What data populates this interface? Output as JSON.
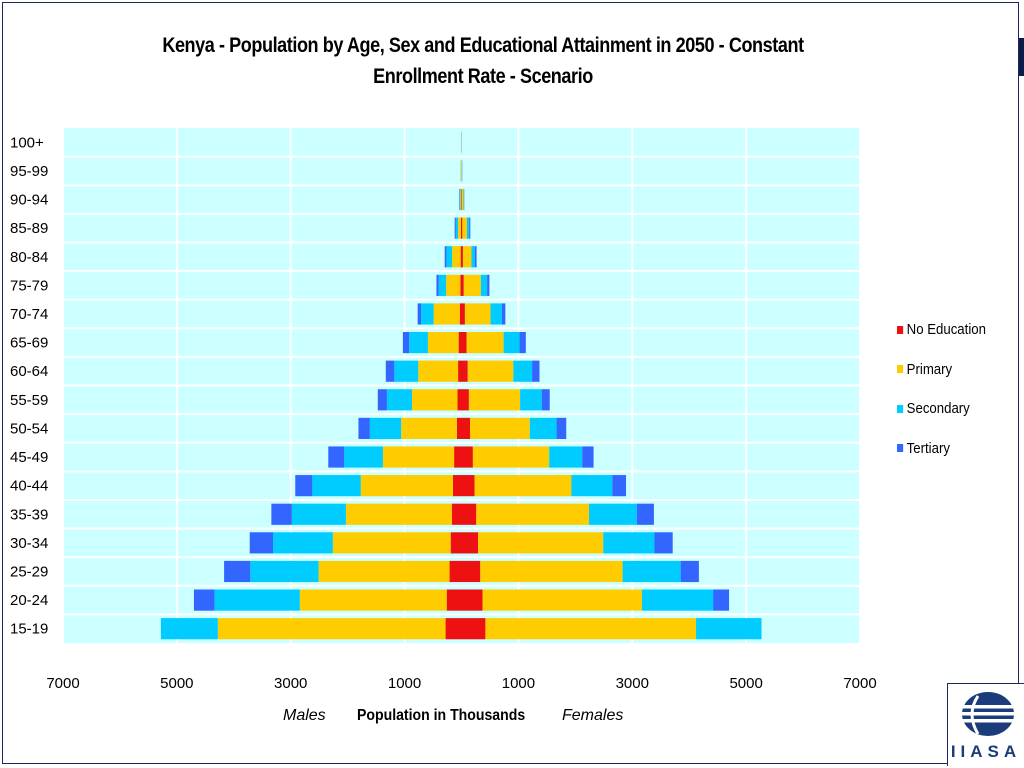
{
  "chart_data": {
    "type": "bar",
    "orientation": "horizontal-population-pyramid",
    "title": "Kenya - Population by Age, Sex and Educational Attainment  in 2050  - Constant  Enrollment Rate - Scenario",
    "xlabel": "Population in Thousands",
    "left_label": "Males",
    "right_label": "Females",
    "x_ticks": [
      "7000",
      "5000",
      "3000",
      "1000",
      "1000",
      "3000",
      "5000",
      "7000"
    ],
    "xlim": [
      -7000,
      7000
    ],
    "grid": true,
    "legend_position": "right",
    "categories": [
      "15-19",
      "20-24",
      "25-29",
      "30-34",
      "35-39",
      "40-44",
      "45-49",
      "50-54",
      "55-59",
      "60-64",
      "65-69",
      "70-74",
      "75-79",
      "80-84",
      "85-89",
      "90-94",
      "95-99",
      "100+"
    ],
    "series": [
      {
        "name": "No Education",
        "color": "#ee1111",
        "males": [
          280,
          260,
          210,
          190,
          170,
          150,
          130,
          80,
          70,
          60,
          50,
          30,
          20,
          15,
          10,
          5,
          2,
          1
        ],
        "females": [
          420,
          370,
          330,
          290,
          260,
          230,
          200,
          150,
          130,
          110,
          90,
          60,
          40,
          25,
          15,
          8,
          3,
          1
        ]
      },
      {
        "name": "Primary",
        "color": "#ffcc00",
        "males": [
          4000,
          2580,
          2300,
          2070,
          1860,
          1620,
          1250,
          980,
          800,
          700,
          540,
          460,
          250,
          150,
          50,
          15,
          5,
          2
        ],
        "females": [
          3700,
          2800,
          2500,
          2200,
          1980,
          1700,
          1340,
          1050,
          900,
          800,
          650,
          450,
          300,
          150,
          80,
          25,
          6,
          2
        ]
      },
      {
        "name": "Secondary",
        "color": "#00ccff",
        "males": [
          1000,
          1500,
          1200,
          1050,
          950,
          850,
          680,
          550,
          440,
          420,
          330,
          220,
          130,
          100,
          40,
          15,
          4,
          1
        ],
        "females": [
          1150,
          1250,
          1020,
          900,
          840,
          720,
          580,
          470,
          380,
          330,
          280,
          200,
          110,
          60,
          40,
          10,
          3,
          1
        ]
      },
      {
        "name": "Tertiary",
        "color": "#3366ff",
        "males": [
          0,
          360,
          460,
          410,
          360,
          300,
          280,
          200,
          160,
          150,
          110,
          60,
          40,
          30,
          20,
          5,
          2,
          1
        ],
        "females": [
          0,
          280,
          320,
          320,
          300,
          240,
          200,
          170,
          140,
          130,
          110,
          60,
          40,
          30,
          20,
          5,
          2,
          1
        ]
      }
    ]
  },
  "logo": {
    "text": "IIASA"
  },
  "colors": {
    "plot_background": "#ccffff",
    "grid": "#ffffff",
    "frame": "#1b2a5a"
  }
}
